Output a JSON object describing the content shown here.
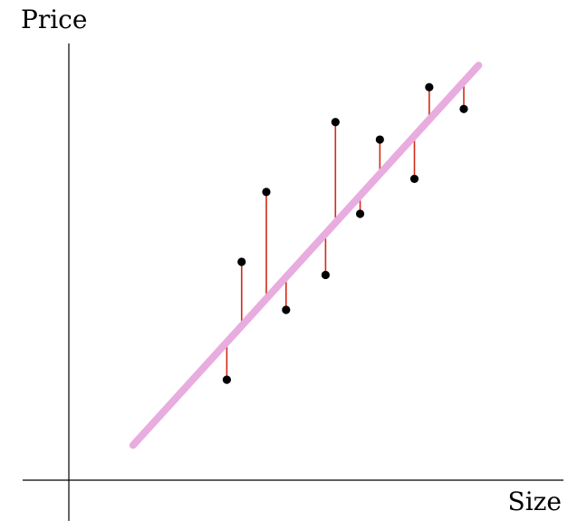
{
  "chart_data": {
    "type": "scatter",
    "title": "",
    "xlabel": "Size",
    "ylabel": "Price",
    "xlim": [
      0,
      10
    ],
    "ylim": [
      0,
      10
    ],
    "grid": false,
    "legend": "none",
    "points": [
      {
        "x": 3.2,
        "y": 2.3
      },
      {
        "x": 3.5,
        "y": 5.0
      },
      {
        "x": 4.0,
        "y": 6.6
      },
      {
        "x": 4.4,
        "y": 3.9
      },
      {
        "x": 5.2,
        "y": 4.7
      },
      {
        "x": 5.4,
        "y": 8.2
      },
      {
        "x": 5.9,
        "y": 6.1
      },
      {
        "x": 6.3,
        "y": 7.8
      },
      {
        "x": 7.0,
        "y": 6.9
      },
      {
        "x": 7.3,
        "y": 9.0
      },
      {
        "x": 8.0,
        "y": 8.5
      }
    ],
    "regression_line": {
      "x": [
        1.3,
        8.3
      ],
      "y": [
        0.8,
        9.5
      ]
    },
    "colors": {
      "points": "#000000",
      "regression_line": "#e8acdf",
      "residuals": "#d42a16",
      "axes": "#000000"
    }
  }
}
